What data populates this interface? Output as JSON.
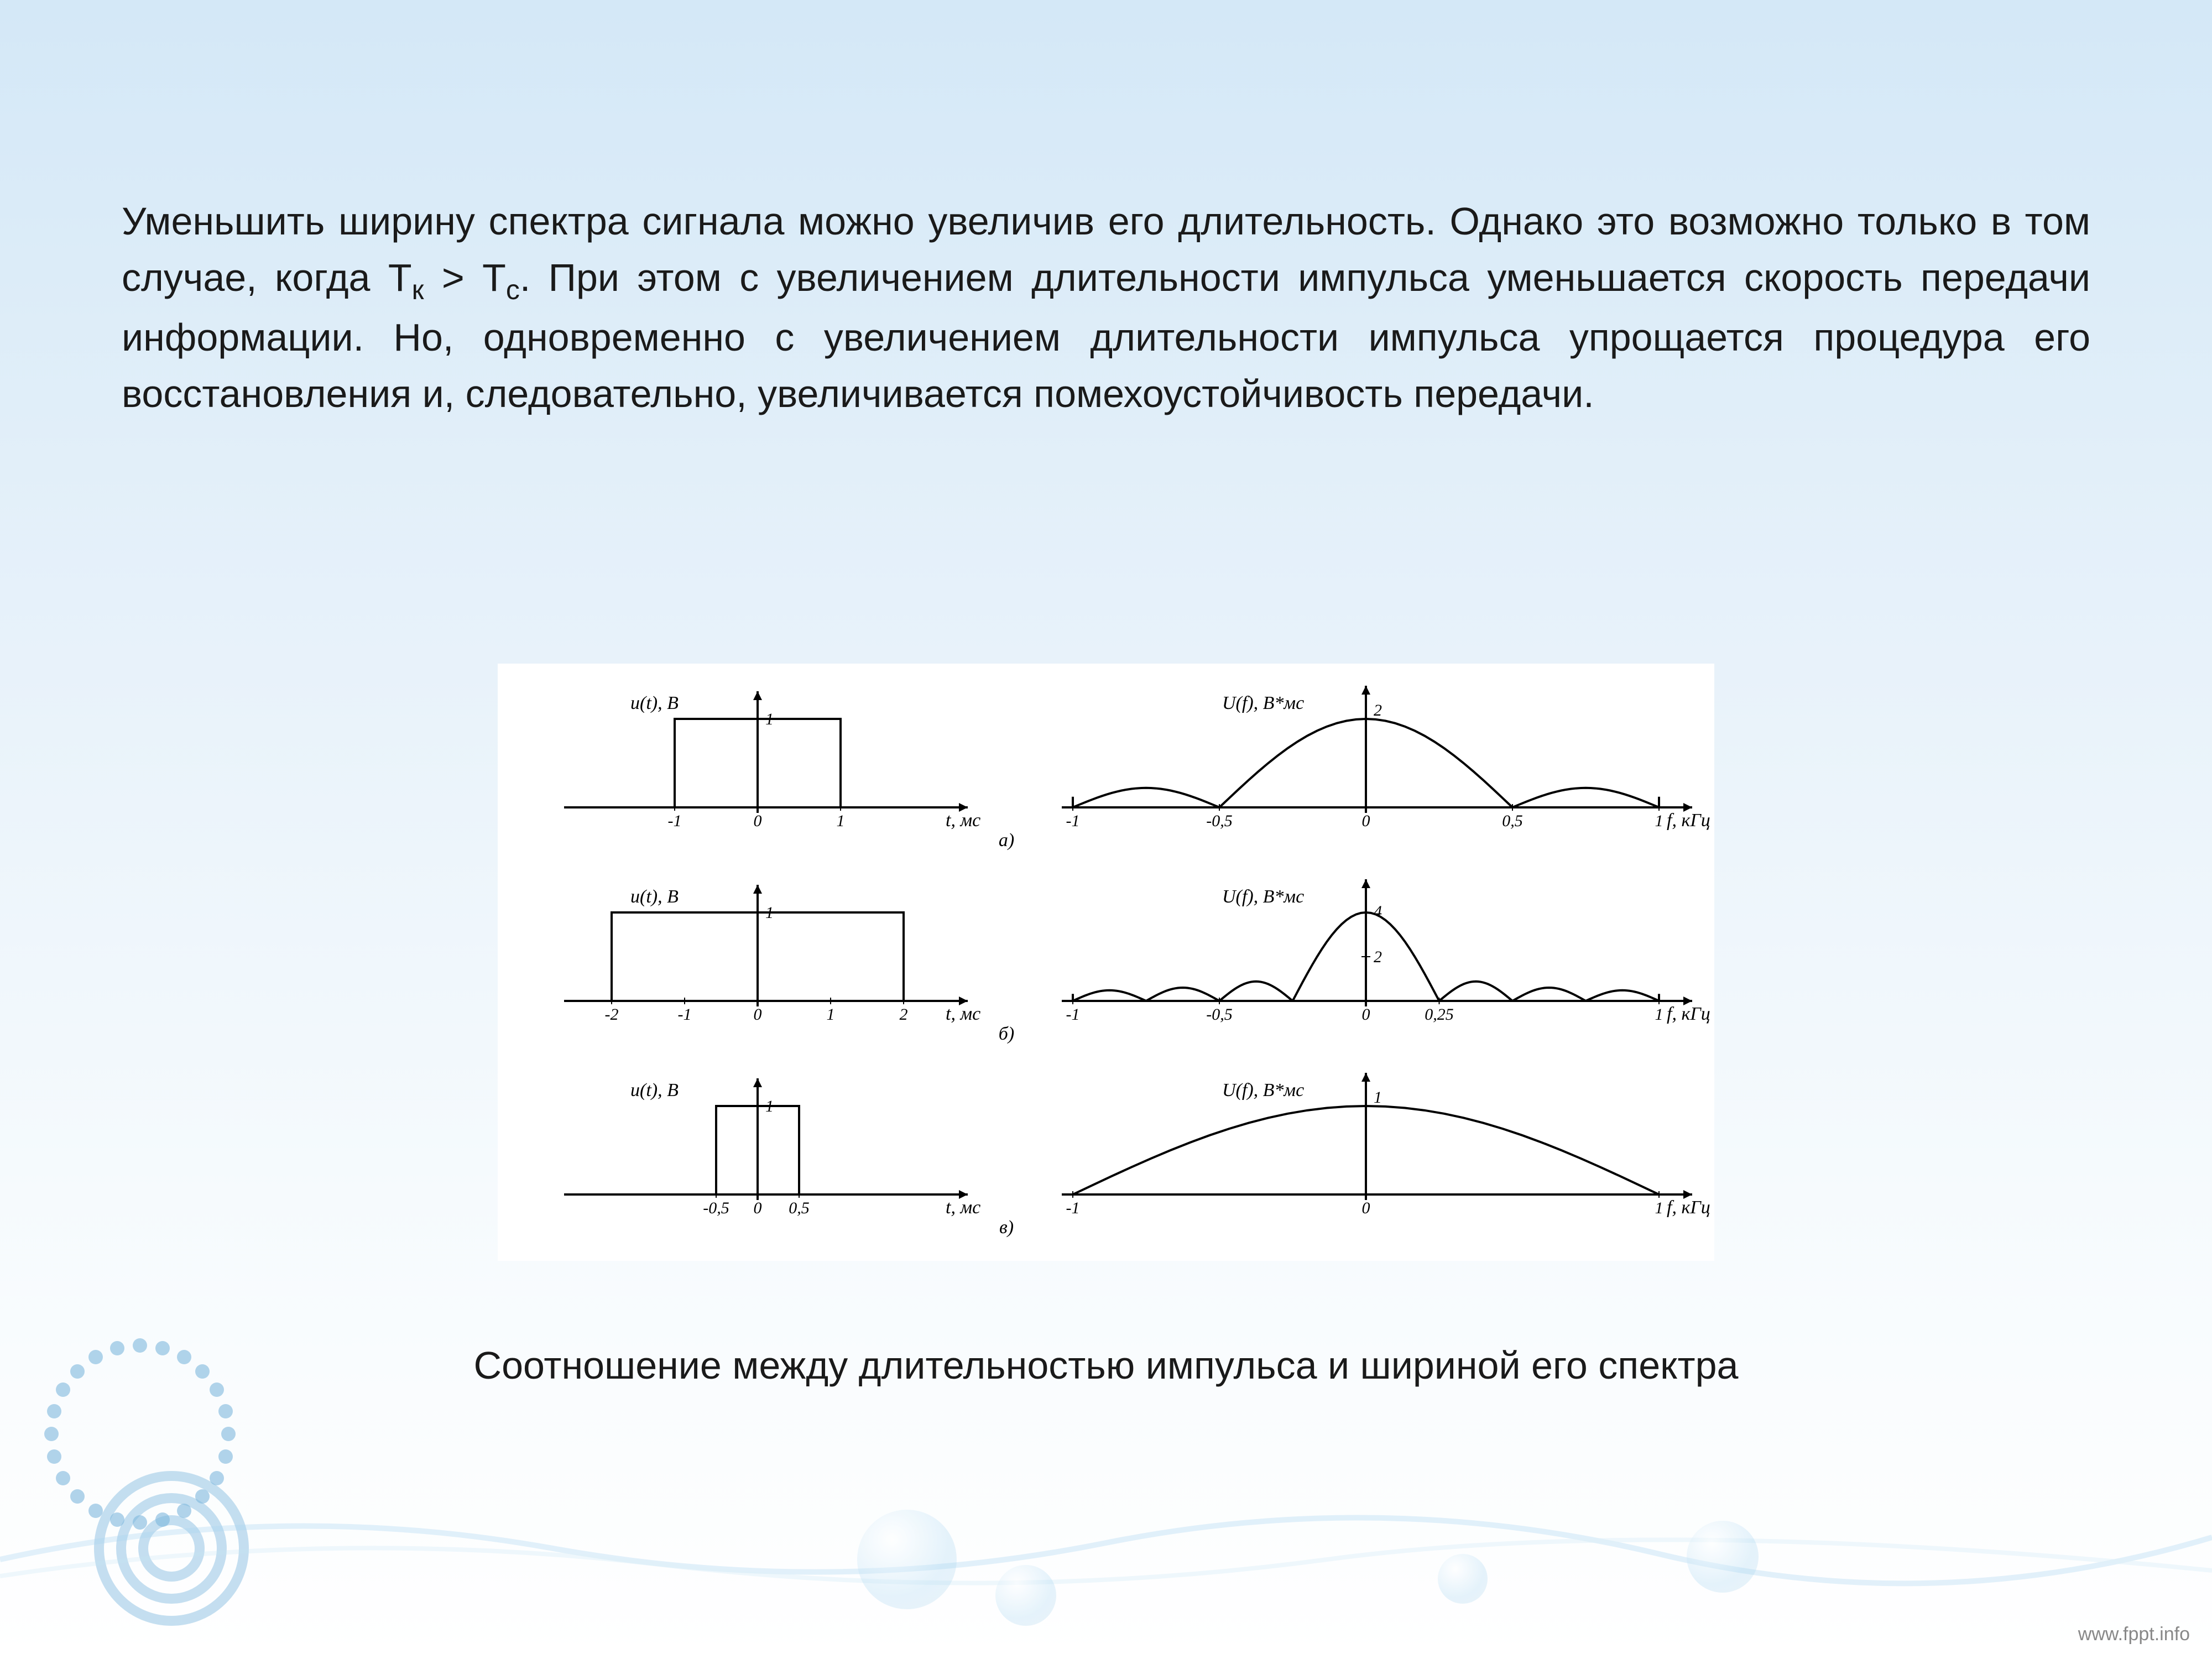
{
  "text": {
    "p_before_ineq": "Уменьшить ширину спектра сигнала можно увеличив его длительность. Однако это возможно только в том случае, когда ",
    "ineq_left": "Т",
    "ineq_left_sub": "к",
    "ineq_gt": " > ",
    "ineq_right": "Т",
    "ineq_right_sub": "с",
    "p_after_ineq": ". При этом с увеличением длительности импульса уменьшается скорость передачи информации. Но, одновременно с увеличением длительности импульса упрощается процедура его восстановления и, следовательно, увеличивается помехоустойчивость передачи.",
    "caption": "Соотношение между длительностью импульса и шириной его спектра",
    "footer": "www.fppt.info"
  },
  "figure": {
    "background_color": "#ffffff",
    "stroke": "#000000",
    "stroke_width": 4,
    "axis_fontsize": 34,
    "tick_fontsize": 30,
    "rows": [
      {
        "label": "а)",
        "time": {
          "ylabel": "u(t), В",
          "xlabel": "t, мс",
          "y_tick": "1",
          "x_ticks": [
            "-1",
            "0",
            "1"
          ],
          "pulse_half_width": 1.0,
          "axis_half_width": 2.2
        },
        "spec": {
          "ylabel": "U(f), В*мс",
          "xlabel": "f, кГц",
          "y_tick": "2",
          "x_ticks_pos": [
            -1,
            -0.5,
            0,
            0.5,
            1
          ],
          "x_ticks_lbl": [
            "-1",
            "-0,5",
            "0",
            "0,5",
            "1"
          ],
          "main_peak": 2,
          "side_width_ratio": 0.5
        }
      },
      {
        "label": "б)",
        "time": {
          "ylabel": "u(t), В",
          "xlabel": "t, мс",
          "y_tick": "1",
          "x_ticks": [
            "-2",
            "-1",
            "0",
            "1",
            "2"
          ],
          "pulse_half_width": 2.0,
          "axis_half_width": 2.5
        },
        "spec": {
          "ylabel": "U(f), В*мс",
          "xlabel": "f, кГц",
          "y_ticks": [
            "2",
            "4"
          ],
          "x_ticks_pos": [
            -1,
            -0.5,
            0,
            0.25,
            1
          ],
          "x_ticks_lbl": [
            "-1",
            "-0,5",
            "0",
            "0,25",
            "1"
          ],
          "main_peak": 4,
          "main_half_width": 0.25
        }
      },
      {
        "label": "в)",
        "time": {
          "ylabel": "u(t), В",
          "xlabel": "t, мс",
          "y_tick": "1",
          "x_ticks": [
            "-0,5",
            "0",
            "0,5"
          ],
          "pulse_half_width": 0.5,
          "axis_half_width": 2.2
        },
        "spec": {
          "ylabel": "U(f), В*мс",
          "xlabel": "f, кГц",
          "y_tick": "1",
          "x_ticks_pos": [
            -1,
            0,
            1
          ],
          "x_ticks_lbl": [
            "-1",
            "0",
            "1"
          ],
          "main_peak": 1,
          "main_half_width": 1.0
        }
      }
    ]
  },
  "colors": {
    "bg_top": "#d4e8f7",
    "bg_bottom": "#ffffff",
    "deco_blue": "#7fb8de",
    "wave": "#a8d4ef"
  }
}
